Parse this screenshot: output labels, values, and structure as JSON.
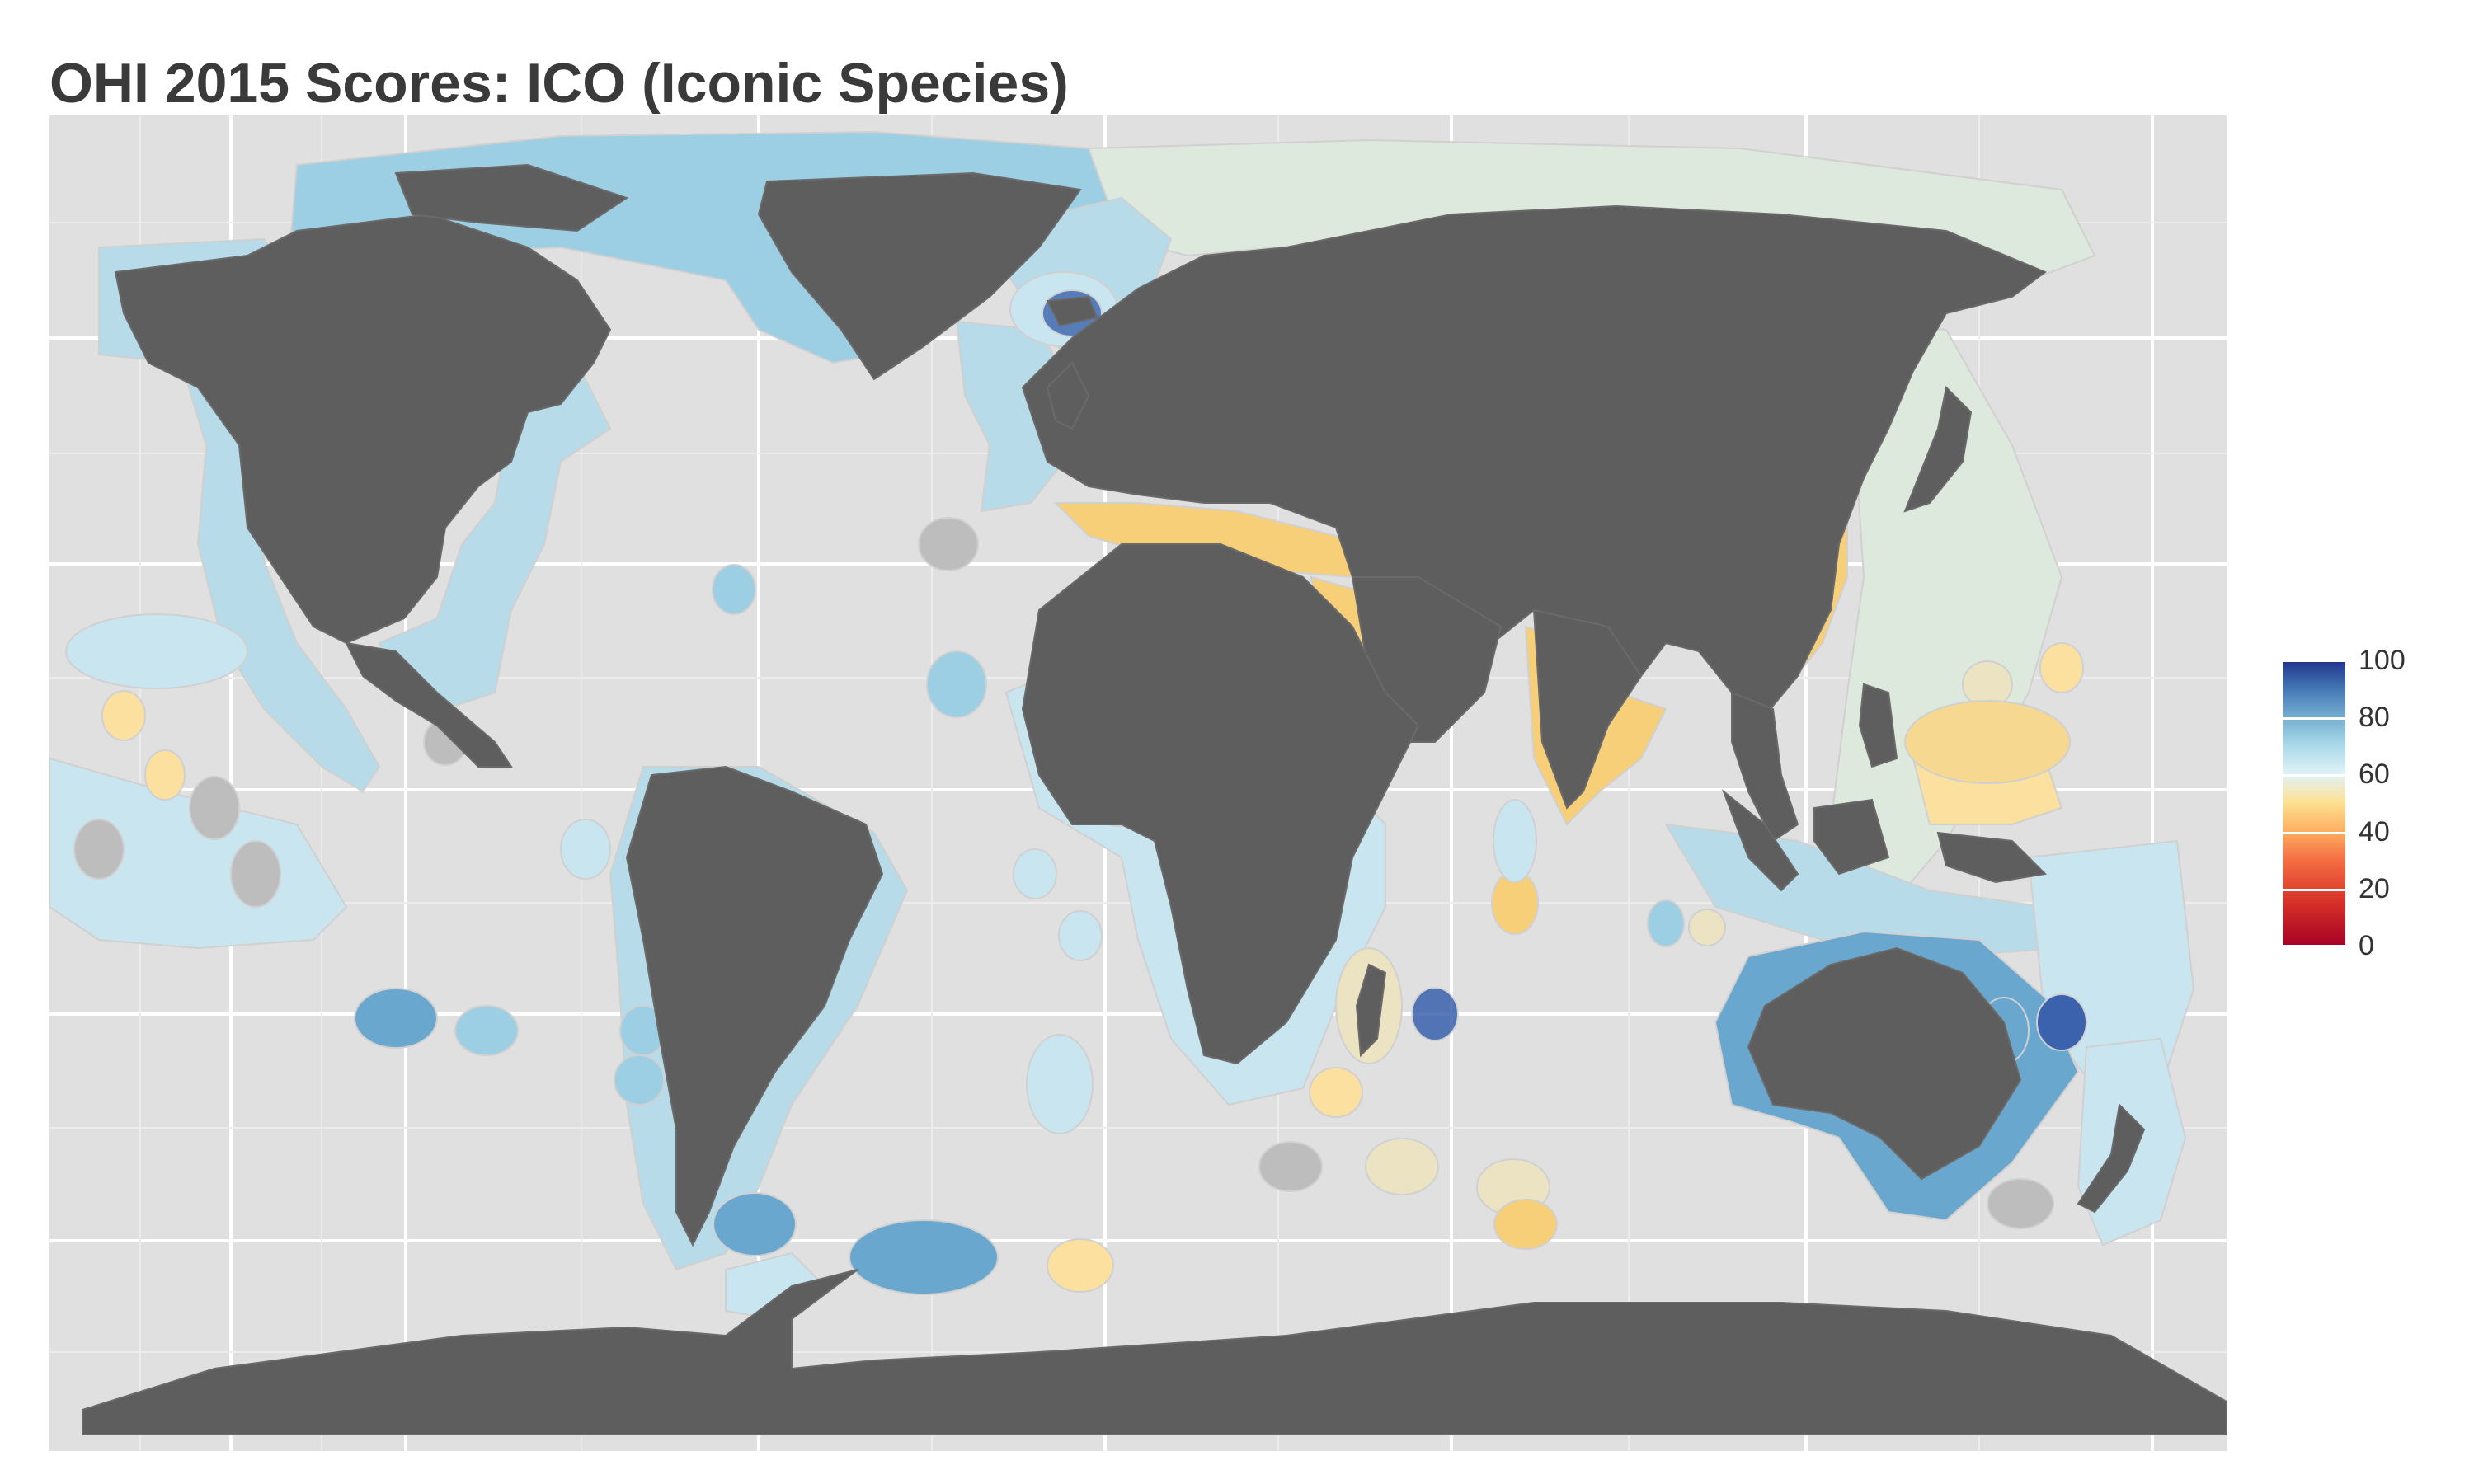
{
  "title": "OHI 2015 Scores: ICO (Iconic Species)",
  "legend": {
    "labels": [
      "100",
      "80",
      "60",
      "40",
      "20",
      "0"
    ],
    "colors": [
      "#1f2f8a",
      "#4277b4",
      "#abd9e9",
      "#fee090",
      "#f46d43",
      "#a50026"
    ]
  },
  "colors": {
    "panel_bg": "#e0e0e0",
    "grid": "#ffffff",
    "land": "#5e5e5e",
    "eez_light_blue": "#c9e6f0",
    "eez_blue": "#9ccfe3",
    "eez_mid_blue": "#6aa7cf",
    "eez_dark_blue": "#3a62ad",
    "eez_pale_green": "#dde9dd",
    "eez_yellow": "#fbe0a0",
    "eez_orange": "#f7cf78",
    "eez_tan": "#ece3c3",
    "eez_grey_na": "#bdbdbd"
  }
}
